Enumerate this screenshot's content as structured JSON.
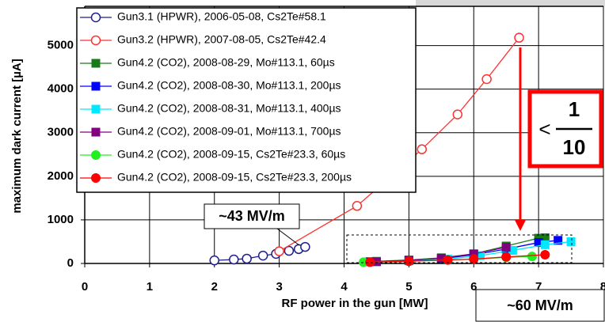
{
  "chart_data": {
    "type": "line",
    "xlabel": "RF power in the gun  [MW]",
    "ylabel": "maximum dark current  [µA]",
    "xlim": [
      0,
      8
    ],
    "ylim": [
      0,
      5900
    ],
    "xticks": [
      0,
      1,
      2,
      3,
      4,
      5,
      6,
      7,
      8
    ],
    "yticks": [
      0,
      1000,
      2000,
      3000,
      4000,
      5000
    ],
    "grid": true,
    "legend": "upper left",
    "annotations": [
      "~43 MV/m",
      "~60 MV/m",
      "<",
      "1",
      "10"
    ],
    "series": [
      {
        "name": "Gun3.1 (HPWR), 2006-05-08, Cs2Te#58.1",
        "color": "#1f1f8f",
        "marker": "circle",
        "open": true,
        "x": [
          2.0,
          2.3,
          2.5,
          2.75,
          2.95,
          3.15,
          3.3,
          3.4
        ],
        "values": [
          70,
          90,
          110,
          180,
          220,
          290,
          330,
          380
        ]
      },
      {
        "name": "Gun3.2 (HPWR), 2007-08-05, Cs2Te#42.4",
        "color": "#ff3030",
        "marker": "circle",
        "open": true,
        "x": [
          3.0,
          4.2,
          5.2,
          5.75,
          6.2,
          6.7
        ],
        "values": [
          280,
          1320,
          2620,
          3420,
          4230,
          5180
        ]
      },
      {
        "name": "Gun4.2 (CO2), 2008-08-29, Mo#113.1, 60µs",
        "color": "#1a7a1a",
        "marker": "square",
        "open": false,
        "x": [
          4.5,
          5.0,
          5.5,
          6.0,
          6.5,
          7.0,
          7.1
        ],
        "values": [
          50,
          80,
          130,
          220,
          400,
          580,
          590
        ]
      },
      {
        "name": "Gun4.2 (CO2), 2008-08-30, Mo#113.1, 200µs",
        "color": "#0000ff",
        "marker": "square",
        "open": false,
        "x": [
          4.4,
          5.0,
          5.5,
          6.0,
          6.5,
          7.0,
          7.3
        ],
        "values": [
          40,
          70,
          110,
          200,
          330,
          480,
          530
        ]
      },
      {
        "name": "Gun4.2 (CO2), 2008-08-31, Mo#113.1, 400µs",
        "color": "#00e8ff",
        "marker": "square",
        "open": false,
        "x": [
          4.5,
          5.0,
          5.6,
          6.1,
          6.6,
          7.1,
          7.5
        ],
        "values": [
          40,
          60,
          100,
          180,
          300,
          430,
          500
        ]
      },
      {
        "name": "Gun4.2 (CO2), 2008-09-01, Mo#113.1, 700µs",
        "color": "#800080",
        "marker": "square",
        "open": false,
        "x": [
          4.5,
          5.0,
          5.5,
          6.0,
          6.5
        ],
        "values": [
          40,
          70,
          120,
          220,
          370
        ]
      },
      {
        "name": "Gun4.2 (CO2), 2008-09-15, Cs2Te#23.3, 60µs",
        "color": "#22ee22",
        "marker": "circle",
        "open": false,
        "x": [
          4.3,
          5.0,
          5.6,
          6.0,
          6.5,
          6.9
        ],
        "values": [
          30,
          50,
          80,
          100,
          140,
          160
        ]
      },
      {
        "name": "Gun4.2 (CO2), 2008-09-15, Cs2Te#23.3, 200µs",
        "color": "#ff0000",
        "marker": "circle",
        "open": false,
        "x": [
          4.4,
          5.0,
          5.6,
          6.0,
          6.5,
          7.1
        ],
        "values": [
          30,
          50,
          80,
          100,
          150,
          200
        ]
      }
    ]
  }
}
